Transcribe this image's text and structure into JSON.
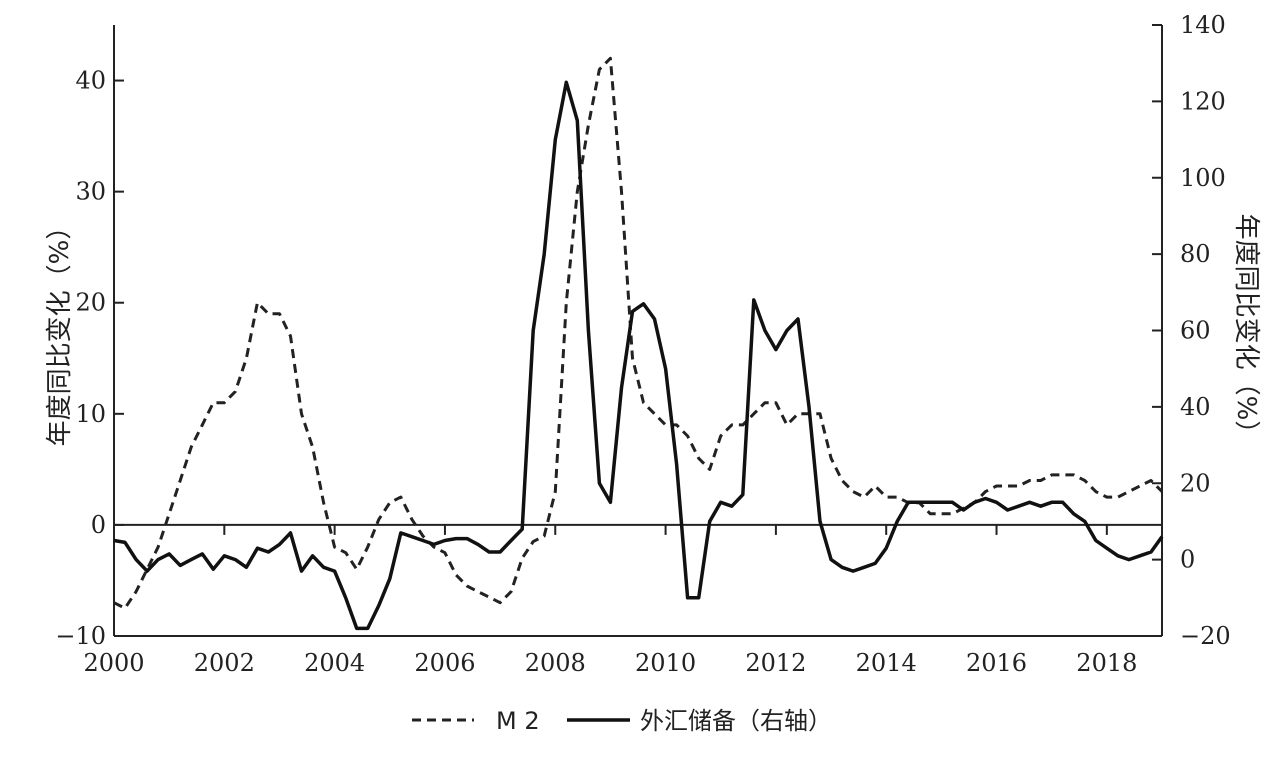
{
  "chart_data": {
    "type": "line",
    "title": "",
    "ylabel_left": "年度同比变化（%）",
    "ylabel_right": "年度同比变化（%）",
    "xlim": [
      2000,
      2019
    ],
    "ylim_left": [
      -10,
      45
    ],
    "ylim_right": [
      -20,
      140
    ],
    "x_ticks": [
      "2000",
      "2002",
      "2004",
      "2006",
      "2008",
      "2010",
      "2012",
      "2014",
      "2016",
      "2018"
    ],
    "y_ticks_left": [
      "−10",
      "0",
      "10",
      "20",
      "30",
      "40"
    ],
    "y_ticks_right": [
      "−20",
      "0",
      "20",
      "40",
      "60",
      "80",
      "100",
      "120",
      "140"
    ],
    "legend_position": "bottom-center",
    "grid": false,
    "series": [
      {
        "name": "M 2",
        "axis": "left",
        "style": "dashed",
        "x": [
          2000.0,
          2000.2,
          2000.4,
          2000.6,
          2000.8,
          2001.0,
          2001.2,
          2001.4,
          2001.6,
          2001.8,
          2002.0,
          2002.2,
          2002.4,
          2002.6,
          2002.8,
          2003.0,
          2003.2,
          2003.4,
          2003.6,
          2003.8,
          2004.0,
          2004.2,
          2004.4,
          2004.6,
          2004.8,
          2005.0,
          2005.2,
          2005.4,
          2005.6,
          2005.8,
          2006.0,
          2006.2,
          2006.4,
          2006.6,
          2006.8,
          2007.0,
          2007.2,
          2007.4,
          2007.6,
          2007.8,
          2008.0,
          2008.2,
          2008.4,
          2008.6,
          2008.8,
          2009.0,
          2009.2,
          2009.4,
          2009.6,
          2009.8,
          2010.0,
          2010.2,
          2010.4,
          2010.6,
          2010.8,
          2011.0,
          2011.2,
          2011.4,
          2011.6,
          2011.8,
          2012.0,
          2012.2,
          2012.4,
          2012.6,
          2012.8,
          2013.0,
          2013.2,
          2013.4,
          2013.6,
          2013.8,
          2014.0,
          2014.2,
          2014.4,
          2014.6,
          2014.8,
          2015.0,
          2015.2,
          2015.4,
          2015.6,
          2015.8,
          2016.0,
          2016.2,
          2016.4,
          2016.6,
          2016.8,
          2017.0,
          2017.2,
          2017.4,
          2017.6,
          2017.8,
          2018.0,
          2018.2,
          2018.4,
          2018.6,
          2018.8,
          2019.0
        ],
        "values": [
          -7.0,
          -7.5,
          -6.0,
          -4.0,
          -2.0,
          1.0,
          4.0,
          7.0,
          9.0,
          11.0,
          11.0,
          12.0,
          15.0,
          20.0,
          19.0,
          19.0,
          17.0,
          10.0,
          7.0,
          2.0,
          -2.0,
          -2.5,
          -4.0,
          -2.0,
          0.5,
          2.0,
          2.5,
          0.5,
          -1.0,
          -2.0,
          -2.5,
          -4.5,
          -5.5,
          -6.0,
          -6.5,
          -7.0,
          -6.0,
          -3.0,
          -1.5,
          -1.0,
          3.0,
          20.0,
          30.0,
          36.0,
          41.0,
          42.0,
          30.0,
          15.0,
          11.0,
          10.0,
          9.0,
          9.0,
          8.0,
          6.0,
          5.0,
          8.0,
          9.0,
          9.0,
          10.0,
          11.0,
          11.0,
          9.0,
          10.0,
          10.0,
          10.0,
          6.0,
          4.0,
          3.0,
          2.5,
          3.5,
          2.5,
          2.5,
          2.0,
          2.0,
          1.0,
          1.0,
          1.0,
          1.5,
          2.0,
          3.0,
          3.5,
          3.5,
          3.5,
          4.0,
          4.0,
          4.5,
          4.5,
          4.5,
          4.0,
          3.0,
          2.5,
          2.5,
          3.0,
          3.5,
          4.0,
          3.0
        ]
      },
      {
        "name": "外汇储备（右轴）",
        "axis": "right",
        "style": "solid",
        "x": [
          2000.0,
          2000.2,
          2000.4,
          2000.6,
          2000.8,
          2001.0,
          2001.2,
          2001.4,
          2001.6,
          2001.8,
          2002.0,
          2002.2,
          2002.4,
          2002.6,
          2002.8,
          2003.0,
          2003.2,
          2003.4,
          2003.6,
          2003.8,
          2004.0,
          2004.2,
          2004.4,
          2004.6,
          2004.8,
          2005.0,
          2005.2,
          2005.4,
          2005.6,
          2005.8,
          2006.0,
          2006.2,
          2006.4,
          2006.6,
          2006.8,
          2007.0,
          2007.2,
          2007.4,
          2007.6,
          2007.8,
          2008.0,
          2008.2,
          2008.4,
          2008.6,
          2008.8,
          2009.0,
          2009.2,
          2009.4,
          2009.6,
          2009.8,
          2010.0,
          2010.2,
          2010.4,
          2010.6,
          2010.8,
          2011.0,
          2011.2,
          2011.4,
          2011.6,
          2011.8,
          2012.0,
          2012.2,
          2012.4,
          2012.6,
          2012.8,
          2013.0,
          2013.2,
          2013.4,
          2013.6,
          2013.8,
          2014.0,
          2014.2,
          2014.4,
          2014.6,
          2014.8,
          2015.0,
          2015.2,
          2015.4,
          2015.6,
          2015.8,
          2016.0,
          2016.2,
          2016.4,
          2016.6,
          2016.8,
          2017.0,
          2017.2,
          2017.4,
          2017.6,
          2017.8,
          2018.0,
          2018.2,
          2018.4,
          2018.6,
          2018.8,
          2019.0
        ],
        "values": [
          5.0,
          4.5,
          0.0,
          -3.0,
          0.0,
          1.5,
          -1.5,
          0.0,
          1.5,
          -2.5,
          1.0,
          0.0,
          -2.0,
          3.0,
          2.0,
          4.0,
          7.0,
          -3.0,
          1.0,
          -2.0,
          -3.0,
          -10.0,
          -18.0,
          -18.0,
          -12.0,
          -5.0,
          7.0,
          6.0,
          5.0,
          4.0,
          5.0,
          5.5,
          5.5,
          4.0,
          2.0,
          2.0,
          5.0,
          8.0,
          60.0,
          80.0,
          110.0,
          125.0,
          115.0,
          60.0,
          20.0,
          15.0,
          45.0,
          65.0,
          67.0,
          63.0,
          50.0,
          25.0,
          -10.0,
          -10.0,
          10.0,
          15.0,
          14.0,
          17.0,
          68.0,
          60.0,
          55.0,
          60.0,
          63.0,
          40.0,
          10.0,
          0.0,
          -2.0,
          -3.0,
          -2.0,
          -1.0,
          3.0,
          10.0,
          15.0,
          15.0,
          15.0,
          15.0,
          15.0,
          13.0,
          15.0,
          16.0,
          15.0,
          13.0,
          14.0,
          15.0,
          14.0,
          15.0,
          15.0,
          12.0,
          10.0,
          5.0,
          3.0,
          1.0,
          0.0,
          1.0,
          2.0,
          6.0
        ]
      }
    ]
  }
}
